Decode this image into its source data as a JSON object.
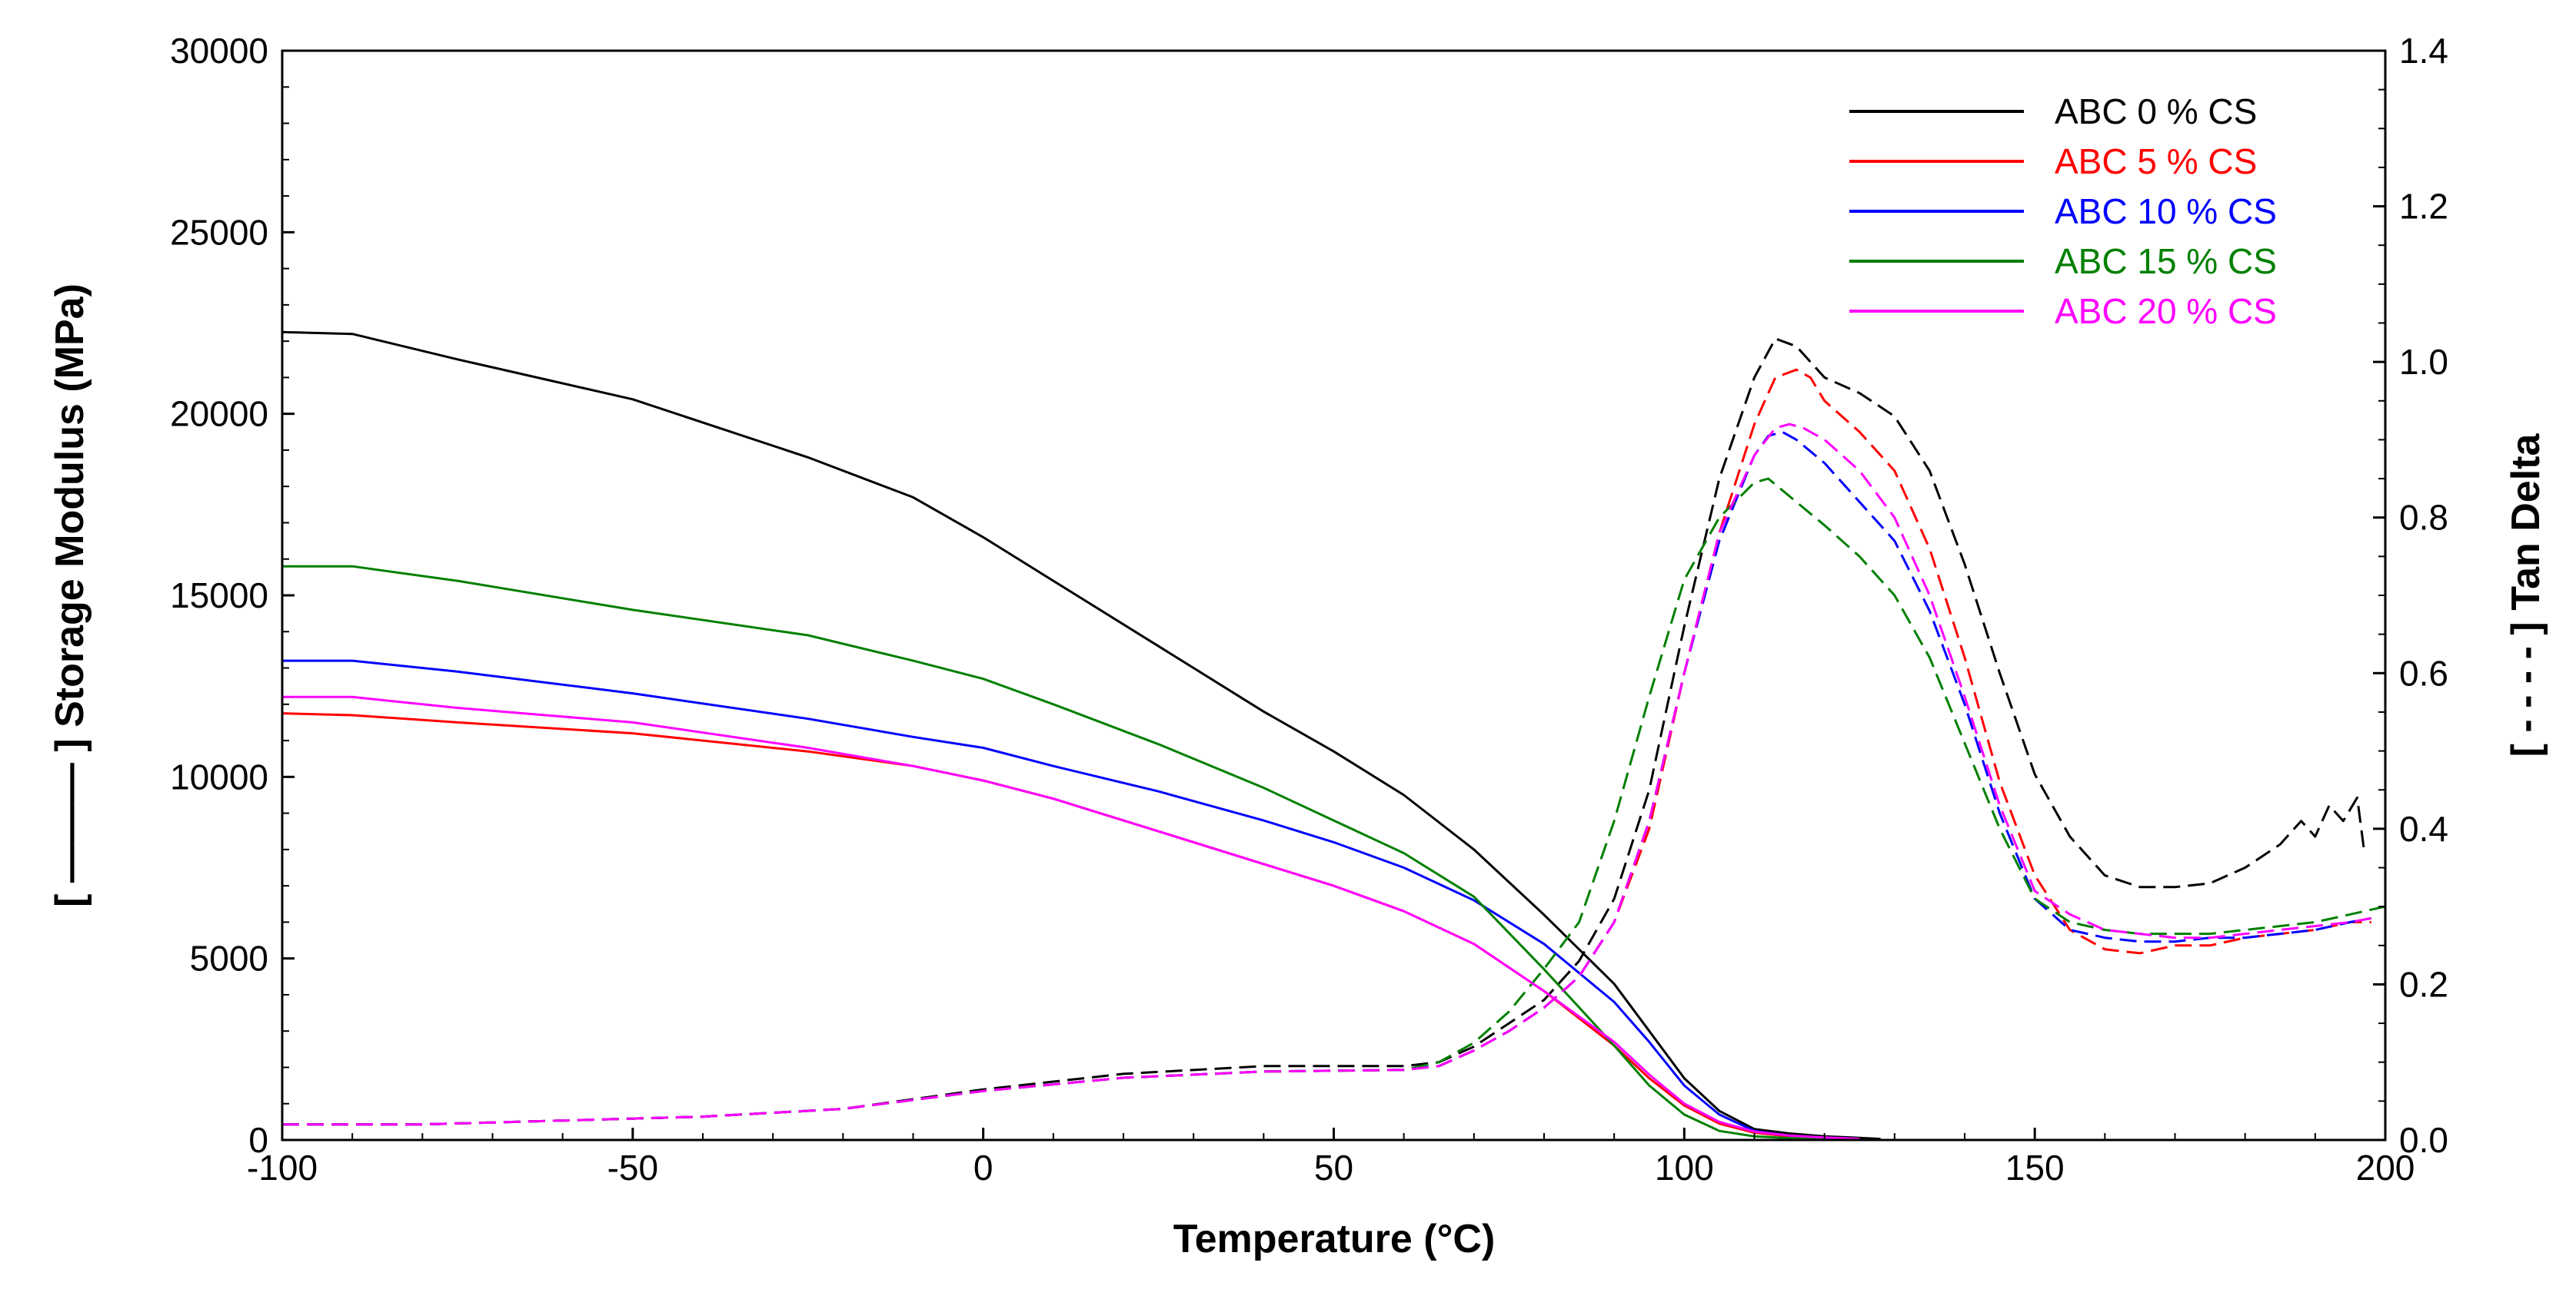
{
  "chart_data": {
    "type": "line",
    "title": "",
    "xlabel": "Temperature (°C)",
    "ylabel_left": "[ ——— ] Storage Modulus (MPa)",
    "ylabel_right": "[ - - - - ] Tan Delta",
    "xlim": [
      -100,
      200
    ],
    "ylim_left": [
      0,
      30000
    ],
    "ylim_right": [
      0.0,
      1.4
    ],
    "x_ticks": [
      "-100",
      "-50",
      "0",
      "50",
      "100",
      "150",
      "200"
    ],
    "y_left_ticks": [
      "0",
      "5000",
      "10000",
      "15000",
      "20000",
      "25000",
      "30000"
    ],
    "y_right_ticks": [
      "0.0",
      "0.2",
      "0.4",
      "0.6",
      "0.8",
      "1.0",
      "1.2",
      "1.4"
    ],
    "grid": false,
    "legend_position": "top-right",
    "series": [
      {
        "name": "ABC 0 % CS",
        "color": "#000000",
        "storage_modulus": {
          "x": [
            -100,
            -90,
            -75,
            -50,
            -25,
            -10,
            0,
            10,
            25,
            40,
            50,
            60,
            70,
            80,
            90,
            95,
            100,
            105,
            110,
            115,
            120,
            125,
            128
          ],
          "y": [
            22250,
            22200,
            21500,
            20400,
            18800,
            17700,
            16600,
            15400,
            13600,
            11800,
            10700,
            9500,
            8000,
            6200,
            4300,
            3000,
            1700,
            800,
            300,
            180,
            100,
            60,
            30
          ]
        },
        "tan_delta": {
          "x": [
            -100,
            -80,
            -60,
            -40,
            -20,
            0,
            20,
            40,
            60,
            65,
            70,
            75,
            80,
            85,
            90,
            95,
            100,
            105,
            110,
            113,
            116,
            118,
            120,
            125,
            130,
            135,
            140,
            145,
            150,
            155,
            160,
            165,
            170,
            175,
            180,
            185,
            188,
            190,
            192,
            194,
            196,
            197
          ],
          "y": [
            0.02,
            0.02,
            0.025,
            0.03,
            0.04,
            0.065,
            0.085,
            0.095,
            0.095,
            0.1,
            0.12,
            0.15,
            0.18,
            0.23,
            0.31,
            0.45,
            0.66,
            0.85,
            0.98,
            1.03,
            1.02,
            1.0,
            0.98,
            0.96,
            0.93,
            0.86,
            0.74,
            0.6,
            0.47,
            0.39,
            0.34,
            0.325,
            0.325,
            0.33,
            0.35,
            0.38,
            0.41,
            0.39,
            0.43,
            0.41,
            0.44,
            0.37
          ]
        }
      },
      {
        "name": "ABC 5 % CS",
        "color": "#ff0000",
        "storage_modulus": {
          "x": [
            -100,
            -90,
            -75,
            -50,
            -25,
            -10,
            0,
            10,
            25,
            40,
            50,
            60,
            70,
            80,
            90,
            95,
            100,
            105,
            110,
            115,
            120,
            125
          ],
          "y": [
            11750,
            11700,
            11500,
            11200,
            10700,
            10300,
            9900,
            9400,
            8500,
            7600,
            7000,
            6300,
            5400,
            4100,
            2600,
            1700,
            950,
            450,
            200,
            100,
            60,
            30
          ]
        },
        "tan_delta": {
          "x": [
            -100,
            -80,
            -60,
            -40,
            -20,
            0,
            20,
            40,
            60,
            65,
            70,
            75,
            80,
            85,
            90,
            95,
            100,
            105,
            110,
            113,
            116,
            118,
            120,
            125,
            130,
            135,
            140,
            145,
            150,
            155,
            160,
            165,
            170,
            175,
            180,
            185,
            190,
            195,
            198
          ],
          "y": [
            0.02,
            0.02,
            0.025,
            0.03,
            0.04,
            0.063,
            0.08,
            0.088,
            0.09,
            0.095,
            0.115,
            0.14,
            0.17,
            0.21,
            0.28,
            0.4,
            0.6,
            0.78,
            0.92,
            0.98,
            0.99,
            0.98,
            0.95,
            0.91,
            0.86,
            0.76,
            0.62,
            0.46,
            0.34,
            0.27,
            0.245,
            0.24,
            0.25,
            0.25,
            0.26,
            0.265,
            0.27,
            0.28,
            0.28
          ]
        }
      },
      {
        "name": "ABC 10 % CS",
        "color": "#0000ff",
        "storage_modulus": {
          "x": [
            -100,
            -90,
            -75,
            -50,
            -25,
            -10,
            0,
            10,
            25,
            40,
            50,
            60,
            70,
            80,
            90,
            95,
            100,
            105,
            110,
            115,
            120,
            125
          ],
          "y": [
            13200,
            13200,
            12900,
            12300,
            11600,
            11100,
            10800,
            10300,
            9600,
            8800,
            8200,
            7500,
            6600,
            5400,
            3800,
            2700,
            1500,
            700,
            250,
            120,
            70,
            30
          ]
        },
        "tan_delta": {
          "x": [
            -100,
            -80,
            -60,
            -40,
            -20,
            0,
            20,
            40,
            60,
            65,
            70,
            75,
            80,
            85,
            90,
            95,
            100,
            105,
            110,
            112,
            114,
            116,
            120,
            125,
            130,
            135,
            140,
            145,
            150,
            155,
            160,
            165,
            170,
            175,
            180,
            185,
            190,
            195,
            198
          ],
          "y": [
            0.02,
            0.02,
            0.025,
            0.03,
            0.04,
            0.063,
            0.08,
            0.088,
            0.09,
            0.095,
            0.115,
            0.14,
            0.17,
            0.21,
            0.28,
            0.41,
            0.6,
            0.77,
            0.88,
            0.905,
            0.91,
            0.9,
            0.87,
            0.82,
            0.77,
            0.68,
            0.56,
            0.42,
            0.31,
            0.27,
            0.26,
            0.255,
            0.255,
            0.26,
            0.26,
            0.265,
            0.27,
            0.28,
            0.285
          ]
        }
      },
      {
        "name": "ABC 15 % CS",
        "color": "#008000",
        "storage_modulus": {
          "x": [
            -100,
            -90,
            -75,
            -50,
            -25,
            -10,
            0,
            10,
            25,
            40,
            50,
            60,
            70,
            80,
            90,
            95,
            100,
            105,
            110,
            115,
            120
          ],
          "y": [
            15800,
            15800,
            15400,
            14600,
            13900,
            13200,
            12700,
            12000,
            10900,
            9700,
            8800,
            7900,
            6700,
            4700,
            2600,
            1500,
            700,
            250,
            100,
            50,
            20
          ]
        },
        "tan_delta": {
          "x": [
            -100,
            -80,
            -60,
            -40,
            -20,
            0,
            20,
            40,
            60,
            65,
            70,
            75,
            80,
            85,
            90,
            95,
            100,
            105,
            110,
            112,
            114,
            116,
            120,
            125,
            130,
            135,
            140,
            145,
            150,
            155,
            160,
            165,
            170,
            175,
            180,
            185,
            190,
            195,
            200
          ],
          "y": [
            0.02,
            0.02,
            0.025,
            0.03,
            0.04,
            0.063,
            0.08,
            0.088,
            0.09,
            0.1,
            0.125,
            0.165,
            0.22,
            0.28,
            0.41,
            0.57,
            0.72,
            0.8,
            0.845,
            0.85,
            0.835,
            0.82,
            0.79,
            0.75,
            0.7,
            0.62,
            0.51,
            0.4,
            0.31,
            0.28,
            0.27,
            0.265,
            0.265,
            0.265,
            0.27,
            0.275,
            0.28,
            0.29,
            0.3
          ]
        }
      },
      {
        "name": "ABC 20 % CS",
        "color": "#ff00ff",
        "storage_modulus": {
          "x": [
            -100,
            -90,
            -75,
            -50,
            -25,
            -10,
            0,
            10,
            25,
            40,
            50,
            60,
            70,
            80,
            90,
            95,
            100,
            105,
            110,
            115,
            120,
            125
          ],
          "y": [
            12200,
            12200,
            11900,
            11500,
            10800,
            10300,
            9900,
            9400,
            8500,
            7600,
            7000,
            6300,
            5400,
            4100,
            2700,
            1800,
            1000,
            500,
            230,
            120,
            70,
            30
          ]
        },
        "tan_delta": {
          "x": [
            -100,
            -80,
            -60,
            -40,
            -20,
            0,
            20,
            40,
            60,
            65,
            70,
            75,
            80,
            85,
            90,
            95,
            100,
            105,
            110,
            113,
            115,
            117,
            120,
            125,
            130,
            135,
            140,
            145,
            150,
            155,
            160,
            165,
            170,
            175,
            180,
            185,
            190,
            195,
            198
          ],
          "y": [
            0.02,
            0.02,
            0.025,
            0.03,
            0.04,
            0.063,
            0.08,
            0.088,
            0.09,
            0.095,
            0.115,
            0.14,
            0.17,
            0.21,
            0.28,
            0.41,
            0.6,
            0.78,
            0.88,
            0.915,
            0.92,
            0.915,
            0.9,
            0.86,
            0.8,
            0.7,
            0.57,
            0.43,
            0.32,
            0.29,
            0.27,
            0.265,
            0.26,
            0.26,
            0.265,
            0.27,
            0.275,
            0.28,
            0.285
          ]
        }
      }
    ]
  }
}
